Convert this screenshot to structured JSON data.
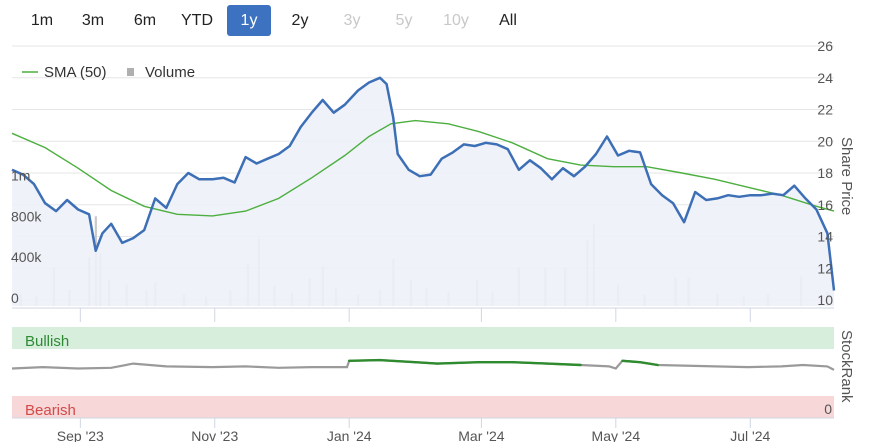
{
  "range_buttons": [
    {
      "label": "1m",
      "state": "normal"
    },
    {
      "label": "3m",
      "state": "normal"
    },
    {
      "label": "6m",
      "state": "normal"
    },
    {
      "label": "YTD",
      "state": "normal"
    },
    {
      "label": "1y",
      "state": "active"
    },
    {
      "label": "2y",
      "state": "normal"
    },
    {
      "label": "3y",
      "state": "disabled"
    },
    {
      "label": "5y",
      "state": "disabled"
    },
    {
      "label": "10y",
      "state": "disabled"
    },
    {
      "label": "All",
      "state": "normal"
    }
  ],
  "colors": {
    "price": "#3d6fb6",
    "price_fill": "#edf1f8",
    "sma": "#4caf3f",
    "volume": "#c9c9c9",
    "stockrank": "#9a9a9a",
    "stockrank_bullish": "#2e8b2e",
    "bullish_band": "#d6eedb",
    "bearish_band": "#f7d7d7",
    "bullish_text": "#2f8a36",
    "bearish_text": "#d24a4a",
    "active_button": "#3d72c0"
  },
  "chart_data": [
    {
      "type": "line",
      "title": "",
      "ylabel": "Share Price",
      "ylim": [
        10,
        26
      ],
      "yticks": [
        "10",
        "12",
        "14",
        "16",
        "18",
        "20",
        "22",
        "24",
        "26"
      ],
      "volume_ticks": [
        "0",
        "400k",
        "800k",
        "1m"
      ],
      "xticks": [
        {
          "label": "Sep '23",
          "date": "2023-09-01"
        },
        {
          "label": "Nov '23",
          "date": "2023-11-01"
        },
        {
          "label": "Jan '24",
          "date": "2024-01-01"
        },
        {
          "label": "Mar '24",
          "date": "2024-03-01"
        },
        {
          "label": "May '24",
          "date": "2024-05-01"
        },
        {
          "label": "Jul '24",
          "date": "2024-07-01"
        }
      ],
      "legend": [
        {
          "name": "SMA (50)",
          "marker": "line"
        },
        {
          "name": "Volume",
          "marker": "square"
        }
      ],
      "legend_position": "top-left",
      "series": [
        {
          "name": "Share price",
          "points": [
            [
              "2023-08-01",
              18.2
            ],
            [
              "2023-08-06",
              17.9
            ],
            [
              "2023-08-11",
              17.3
            ],
            [
              "2023-08-16",
              16.1
            ],
            [
              "2023-08-21",
              15.6
            ],
            [
              "2023-08-26",
              16.3
            ],
            [
              "2023-08-31",
              15.7
            ],
            [
              "2023-09-05",
              15.4
            ],
            [
              "2023-09-08",
              13.1
            ],
            [
              "2023-09-11",
              14.2
            ],
            [
              "2023-09-15",
              14.8
            ],
            [
              "2023-09-20",
              13.6
            ],
            [
              "2023-09-25",
              13.9
            ],
            [
              "2023-09-30",
              14.4
            ],
            [
              "2023-10-05",
              16.4
            ],
            [
              "2023-10-10",
              15.8
            ],
            [
              "2023-10-15",
              17.3
            ],
            [
              "2023-10-20",
              18.0
            ],
            [
              "2023-10-25",
              17.6
            ],
            [
              "2023-10-31",
              17.6
            ],
            [
              "2023-11-05",
              17.7
            ],
            [
              "2023-11-10",
              17.4
            ],
            [
              "2023-11-15",
              19.0
            ],
            [
              "2023-11-20",
              18.6
            ],
            [
              "2023-11-25",
              18.9
            ],
            [
              "2023-11-30",
              19.2
            ],
            [
              "2023-12-05",
              19.7
            ],
            [
              "2023-12-10",
              20.9
            ],
            [
              "2023-12-15",
              21.8
            ],
            [
              "2023-12-20",
              22.6
            ],
            [
              "2023-12-25",
              21.8
            ],
            [
              "2023-12-30",
              22.3
            ],
            [
              "2024-01-05",
              23.2
            ],
            [
              "2024-01-10",
              23.7
            ],
            [
              "2024-01-15",
              24.0
            ],
            [
              "2024-01-18",
              23.6
            ],
            [
              "2024-01-21",
              21.5
            ],
            [
              "2024-01-23",
              19.2
            ],
            [
              "2024-01-28",
              18.2
            ],
            [
              "2024-02-02",
              17.8
            ],
            [
              "2024-02-07",
              17.9
            ],
            [
              "2024-02-12",
              18.9
            ],
            [
              "2024-02-17",
              19.3
            ],
            [
              "2024-02-22",
              19.8
            ],
            [
              "2024-02-27",
              19.7
            ],
            [
              "2024-03-03",
              19.9
            ],
            [
              "2024-03-08",
              19.8
            ],
            [
              "2024-03-13",
              19.5
            ],
            [
              "2024-03-18",
              18.2
            ],
            [
              "2024-03-23",
              18.8
            ],
            [
              "2024-03-28",
              18.3
            ],
            [
              "2024-04-02",
              17.6
            ],
            [
              "2024-04-07",
              18.3
            ],
            [
              "2024-04-12",
              17.8
            ],
            [
              "2024-04-17",
              18.4
            ],
            [
              "2024-04-22",
              19.2
            ],
            [
              "2024-04-27",
              20.3
            ],
            [
              "2024-05-02",
              19.1
            ],
            [
              "2024-05-07",
              19.4
            ],
            [
              "2024-05-12",
              19.3
            ],
            [
              "2024-05-17",
              17.3
            ],
            [
              "2024-05-22",
              16.6
            ],
            [
              "2024-05-27",
              16.1
            ],
            [
              "2024-06-01",
              14.9
            ],
            [
              "2024-06-06",
              16.8
            ],
            [
              "2024-06-11",
              16.3
            ],
            [
              "2024-06-16",
              16.4
            ],
            [
              "2024-06-21",
              16.6
            ],
            [
              "2024-06-26",
              16.5
            ],
            [
              "2024-07-01",
              16.6
            ],
            [
              "2024-07-06",
              16.6
            ],
            [
              "2024-07-11",
              16.7
            ],
            [
              "2024-07-16",
              16.6
            ],
            [
              "2024-07-21",
              17.2
            ],
            [
              "2024-07-26",
              16.4
            ],
            [
              "2024-07-31",
              15.7
            ],
            [
              "2024-08-05",
              14.2
            ],
            [
              "2024-08-08",
              10.6
            ]
          ]
        },
        {
          "name": "SMA (50)",
          "points": [
            [
              "2023-08-01",
              20.5
            ],
            [
              "2023-08-16",
              19.6
            ],
            [
              "2023-08-31",
              18.3
            ],
            [
              "2023-09-15",
              16.9
            ],
            [
              "2023-09-30",
              15.9
            ],
            [
              "2023-10-15",
              15.4
            ],
            [
              "2023-10-31",
              15.3
            ],
            [
              "2023-11-15",
              15.6
            ],
            [
              "2023-11-30",
              16.4
            ],
            [
              "2023-12-15",
              17.7
            ],
            [
              "2023-12-30",
              19.1
            ],
            [
              "2024-01-10",
              20.3
            ],
            [
              "2024-01-20",
              21.1
            ],
            [
              "2024-01-31",
              21.3
            ],
            [
              "2024-02-15",
              21.1
            ],
            [
              "2024-02-29",
              20.6
            ],
            [
              "2024-03-15",
              19.9
            ],
            [
              "2024-03-31",
              18.9
            ],
            [
              "2024-04-15",
              18.5
            ],
            [
              "2024-04-30",
              18.4
            ],
            [
              "2024-05-15",
              18.4
            ],
            [
              "2024-05-31",
              18.0
            ],
            [
              "2024-06-15",
              17.6
            ],
            [
              "2024-06-30",
              17.1
            ],
            [
              "2024-07-15",
              16.6
            ],
            [
              "2024-07-31",
              15.9
            ],
            [
              "2024-08-08",
              15.6
            ]
          ]
        },
        {
          "name": "Volume",
          "points": [
            [
              "2023-08-05",
              120000
            ],
            [
              "2023-08-12",
              100000
            ],
            [
              "2023-08-20",
              380000
            ],
            [
              "2023-08-27",
              160000
            ],
            [
              "2023-09-05",
              480000
            ],
            [
              "2023-09-08",
              880000
            ],
            [
              "2023-09-10",
              520000
            ],
            [
              "2023-09-14",
              260000
            ],
            [
              "2023-09-22",
              210000
            ],
            [
              "2023-10-01",
              150000
            ],
            [
              "2023-10-05",
              230000
            ],
            [
              "2023-10-18",
              120000
            ],
            [
              "2023-10-28",
              90000
            ],
            [
              "2023-11-08",
              150000
            ],
            [
              "2023-11-16",
              420000
            ],
            [
              "2023-11-21",
              660000
            ],
            [
              "2023-11-28",
              200000
            ],
            [
              "2023-12-06",
              130000
            ],
            [
              "2023-12-14",
              270000
            ],
            [
              "2023-12-20",
              390000
            ],
            [
              "2023-12-26",
              180000
            ],
            [
              "2024-01-05",
              110000
            ],
            [
              "2024-01-15",
              160000
            ],
            [
              "2024-01-21",
              460000
            ],
            [
              "2024-01-29",
              260000
            ],
            [
              "2024-02-05",
              170000
            ],
            [
              "2024-02-15",
              140000
            ],
            [
              "2024-02-28",
              260000
            ],
            [
              "2024-03-06",
              140000
            ],
            [
              "2024-03-18",
              380000
            ],
            [
              "2024-03-30",
              380000
            ],
            [
              "2024-04-08",
              370000
            ],
            [
              "2024-04-18",
              640000
            ],
            [
              "2024-04-21",
              800000
            ],
            [
              "2024-05-02",
              210000
            ],
            [
              "2024-05-14",
              110000
            ],
            [
              "2024-05-28",
              280000
            ],
            [
              "2024-06-03",
              280000
            ],
            [
              "2024-06-16",
              120000
            ],
            [
              "2024-06-28",
              90000
            ],
            [
              "2024-07-09",
              120000
            ],
            [
              "2024-07-24",
              290000
            ],
            [
              "2024-08-05",
              140000
            ]
          ]
        }
      ]
    },
    {
      "type": "line",
      "title": "",
      "ylabel": "StockRank",
      "yticks": [
        "0"
      ],
      "bands": [
        "Bullish",
        "Bearish"
      ],
      "ylim": [
        0,
        100
      ],
      "series": [
        {
          "name": "StockRank",
          "points": [
            [
              "2023-08-01",
              55
            ],
            [
              "2023-08-15",
              57
            ],
            [
              "2023-08-31",
              55
            ],
            [
              "2023-09-15",
              56
            ],
            [
              "2023-09-25",
              62
            ],
            [
              "2023-10-10",
              58
            ],
            [
              "2023-10-31",
              57
            ],
            [
              "2023-11-15",
              58
            ],
            [
              "2023-11-30",
              56
            ],
            [
              "2023-12-15",
              57
            ],
            [
              "2023-12-31",
              57
            ],
            [
              "2024-01-01",
              66
            ],
            [
              "2024-01-15",
              67
            ],
            [
              "2024-01-31",
              64
            ],
            [
              "2024-02-10",
              62
            ],
            [
              "2024-02-29",
              64
            ],
            [
              "2024-03-15",
              64
            ],
            [
              "2024-03-31",
              62
            ],
            [
              "2024-04-15",
              60
            ],
            [
              "2024-04-28",
              58
            ],
            [
              "2024-05-01",
              55
            ],
            [
              "2024-05-04",
              66
            ],
            [
              "2024-05-12",
              64
            ],
            [
              "2024-05-20",
              60
            ],
            [
              "2024-06-15",
              58
            ],
            [
              "2024-06-30",
              57
            ],
            [
              "2024-07-15",
              58
            ],
            [
              "2024-07-25",
              60
            ],
            [
              "2024-08-05",
              58
            ],
            [
              "2024-08-08",
              53
            ]
          ]
        }
      ]
    }
  ]
}
